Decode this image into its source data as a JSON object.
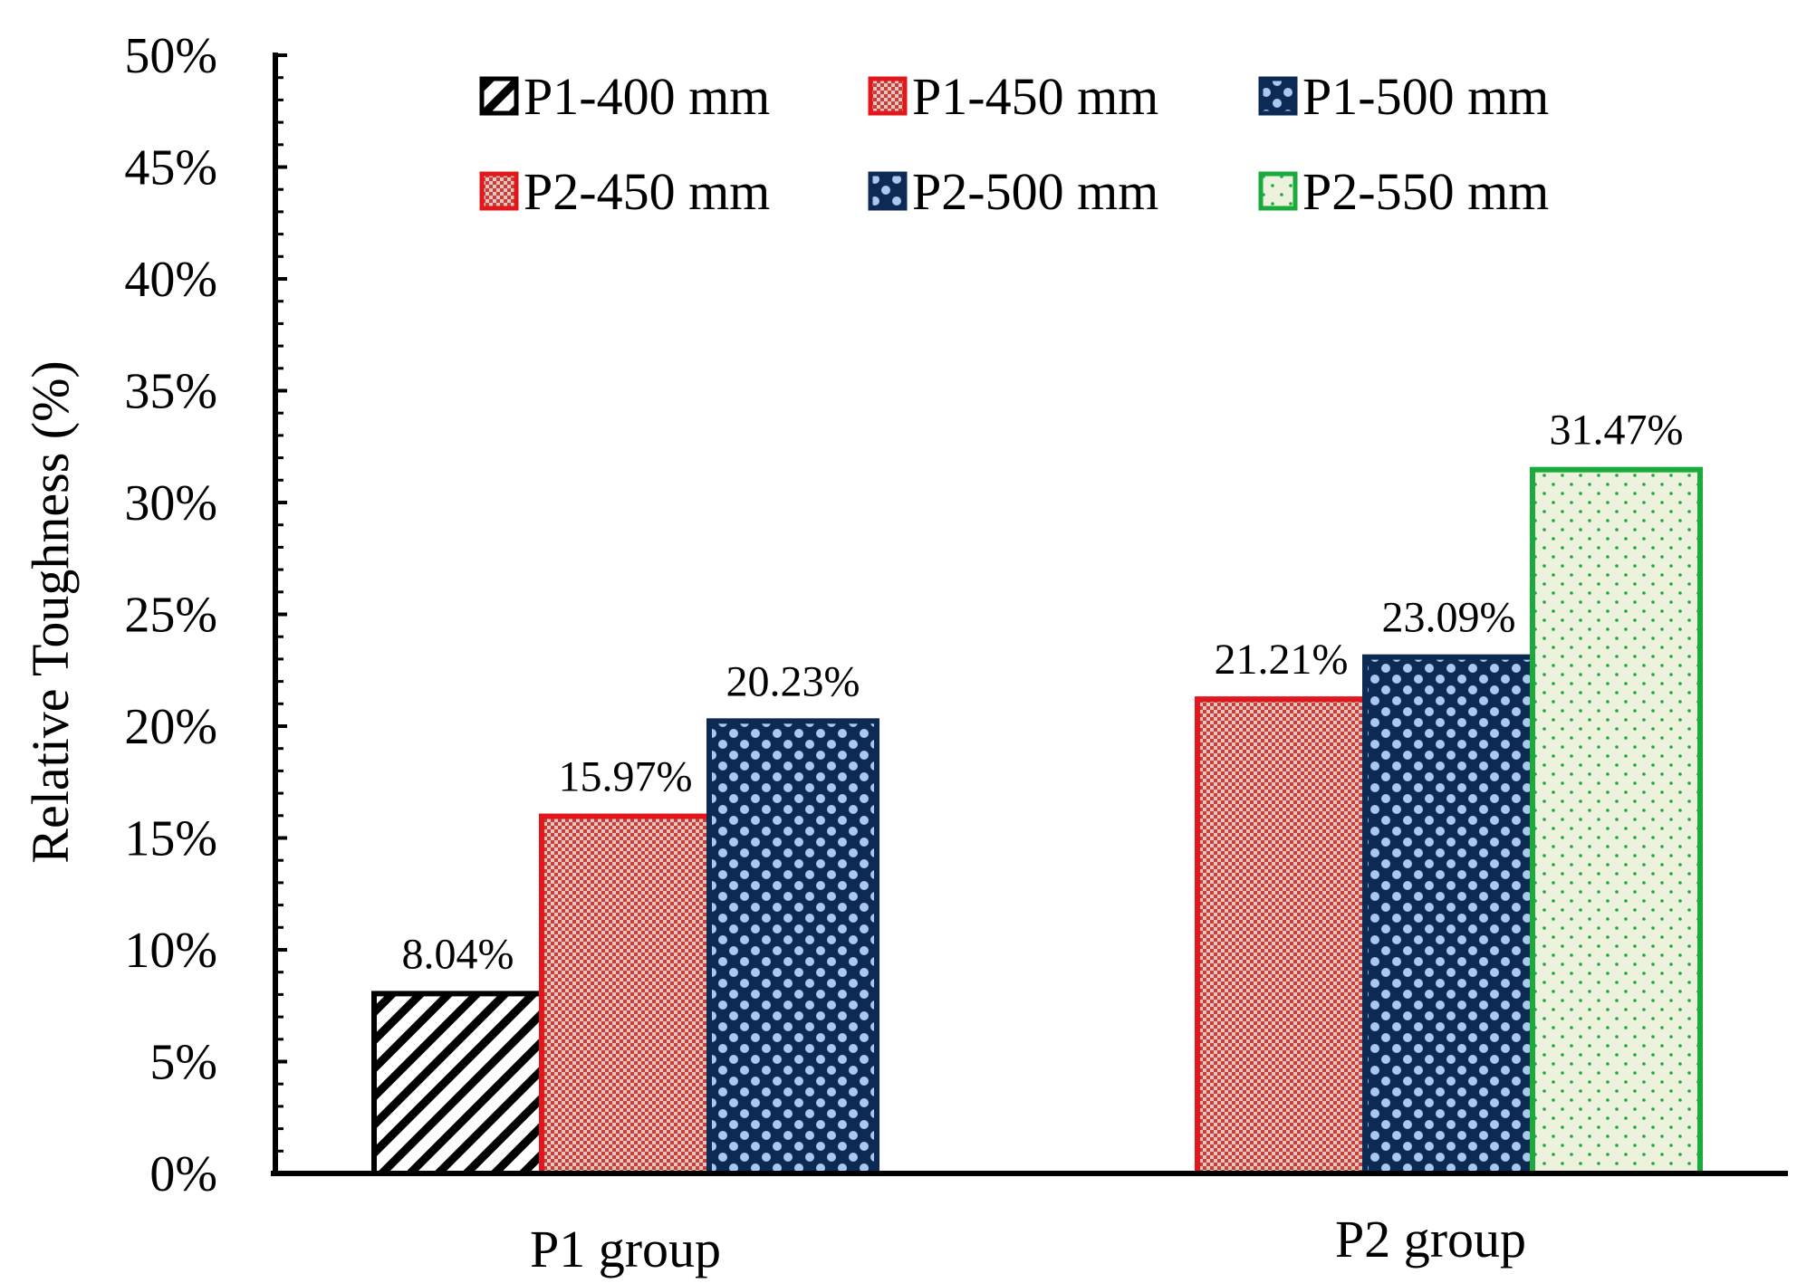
{
  "chart_data": {
    "type": "bar",
    "title": "",
    "xlabel": "",
    "ylabel": "Relative Toughness (%)",
    "ylim": [
      0,
      50
    ],
    "ytick_labels": [
      "0%",
      "5%",
      "10%",
      "15%",
      "20%",
      "25%",
      "30%",
      "35%",
      "40%",
      "45%",
      "50%"
    ],
    "legend_position": "top",
    "groups": [
      {
        "name": "P1 group",
        "bars": [
          {
            "series": "P1-400 mm",
            "value": 8.04,
            "label": "8.04%"
          },
          {
            "series": "P1-450 mm",
            "value": 15.97,
            "label": "15.97%"
          },
          {
            "series": "P1-500 mm",
            "value": 20.23,
            "label": "20.23%"
          }
        ]
      },
      {
        "name": "P2 group",
        "bars": [
          {
            "series": "P2-450 mm",
            "value": 21.21,
            "label": "21.21%"
          },
          {
            "series": "P2-500 mm",
            "value": 23.09,
            "label": "23.09%"
          },
          {
            "series": "P2-550 mm",
            "value": 31.47,
            "label": "31.47%"
          }
        ]
      }
    ],
    "series": [
      {
        "name": "P1-400 mm",
        "pattern": "hatch",
        "stroke": "#000000",
        "fill": "#ffffff"
      },
      {
        "name": "P1-450 mm",
        "pattern": "red-check",
        "stroke": "#e3171b",
        "fill": "#c9574f"
      },
      {
        "name": "P1-500 mm",
        "pattern": "blue-check",
        "stroke": "#0d2a55",
        "fill": "#aac8ee"
      },
      {
        "name": "P2-450 mm",
        "pattern": "red-check",
        "stroke": "#e3171b",
        "fill": "#c9574f"
      },
      {
        "name": "P2-500 mm",
        "pattern": "blue-check",
        "stroke": "#0d2a55",
        "fill": "#aac8ee"
      },
      {
        "name": "P2-550 mm",
        "pattern": "green-dots",
        "stroke": "#1bab3d",
        "fill": "#ecf2dc"
      }
    ]
  }
}
